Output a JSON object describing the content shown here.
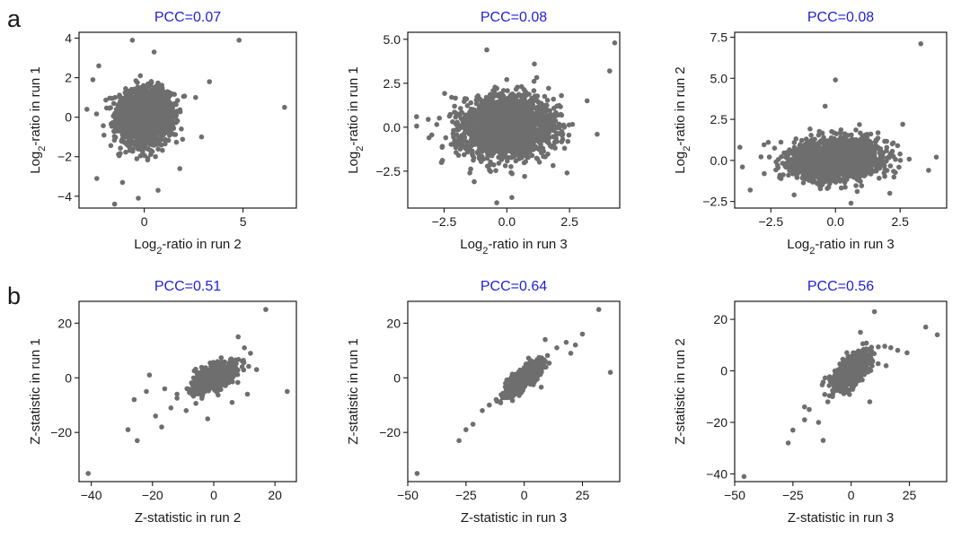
{
  "figure": {
    "panel_labels": [
      "a",
      "b"
    ],
    "title_color": "#1f1fd6",
    "point_color": "#6e6e6e"
  },
  "chart_data": [
    {
      "panel": "a",
      "type": "scatter",
      "title": "PCC=0.07",
      "xlabel": {
        "pre": "Log",
        "sub": "2",
        "post": "-ratio in run 2"
      },
      "ylabel": {
        "pre": "Log",
        "sub": "2",
        "post": "-ratio in run 1"
      },
      "xlim": [
        -3.3,
        7.7
      ],
      "ylim": [
        -4.6,
        4.3
      ],
      "xticks": [
        0,
        5
      ],
      "xtick_labels": [
        "0",
        "5"
      ],
      "yticks": [
        -4,
        -2,
        0,
        2,
        4
      ],
      "ytick_labels": [
        "−4",
        "−2",
        "0",
        "2",
        "4"
      ],
      "cloud": {
        "n": 2200,
        "mean": [
          0,
          0
        ],
        "sd": [
          0.65,
          0.65
        ],
        "corr": 0.07
      },
      "points": [
        [
          4.8,
          3.9
        ],
        [
          7.1,
          0.5
        ],
        [
          -2.3,
          2.6
        ],
        [
          -2.6,
          1.9
        ],
        [
          -2.9,
          0.4
        ],
        [
          -2.4,
          -3.1
        ],
        [
          -1.5,
          -4.4
        ],
        [
          -0.6,
          3.9
        ],
        [
          -0.3,
          -4.1
        ],
        [
          0.5,
          3.3
        ],
        [
          3.3,
          1.8
        ],
        [
          2.6,
          1.0
        ],
        [
          2.9,
          -1.0
        ],
        [
          1.8,
          -2.6
        ],
        [
          -1.1,
          -3.3
        ],
        [
          0.7,
          -3.7
        ]
      ]
    },
    {
      "panel": "a",
      "type": "scatter",
      "title": "PCC=0.08",
      "xlabel": {
        "pre": "Log",
        "sub": "2",
        "post": "-ratio in run 3"
      },
      "ylabel": {
        "pre": "Log",
        "sub": "2",
        "post": "-ratio in run 1"
      },
      "xlim": [
        -3.95,
        4.5
      ],
      "ylim": [
        -4.6,
        5.4
      ],
      "xticks": [
        -2.5,
        0,
        2.5
      ],
      "xtick_labels": [
        "−2.5",
        "0.0",
        "2.5"
      ],
      "yticks": [
        -2.5,
        0,
        2.5,
        5
      ],
      "ytick_labels": [
        "−2.5",
        "0.0",
        "2.5",
        "5.0"
      ],
      "cloud": {
        "n": 2200,
        "mean": [
          0,
          0
        ],
        "sd": [
          0.9,
          0.85
        ],
        "corr": 0.08
      },
      "points": [
        [
          4.3,
          4.8
        ],
        [
          4.1,
          3.2
        ],
        [
          3.2,
          1.5
        ],
        [
          -3.6,
          0.6
        ],
        [
          -3.1,
          -0.6
        ],
        [
          -2.6,
          -2.0
        ],
        [
          -0.8,
          4.4
        ],
        [
          -0.4,
          -4.3
        ],
        [
          0.2,
          -4.0
        ],
        [
          2.4,
          -2.6
        ],
        [
          3.6,
          -0.4
        ],
        [
          -2.2,
          1.7
        ],
        [
          1.1,
          3.6
        ],
        [
          -1.3,
          -3.1
        ]
      ]
    },
    {
      "panel": "a",
      "type": "scatter",
      "title": "PCC=0.08",
      "xlabel": {
        "pre": "Log",
        "sub": "2",
        "post": "-ratio in run 3"
      },
      "ylabel": {
        "pre": "Log",
        "sub": "2",
        "post": "-ratio in run 2"
      },
      "xlim": [
        -3.9,
        4.3
      ],
      "ylim": [
        -2.9,
        7.8
      ],
      "xticks": [
        -2.5,
        0,
        2.5
      ],
      "xtick_labels": [
        "−2.5",
        "0.0",
        "2.5"
      ],
      "yticks": [
        -2.5,
        0,
        2.5,
        5,
        7.5
      ],
      "ytick_labels": [
        "−2.5",
        "0.0",
        "2.5",
        "5.0",
        "7.5"
      ],
      "cloud": {
        "n": 2200,
        "mean": [
          0,
          0.05
        ],
        "sd": [
          0.85,
          0.6
        ],
        "corr": 0.08
      },
      "points": [
        [
          3.3,
          7.1
        ],
        [
          0.0,
          4.9
        ],
        [
          -3.7,
          0.8
        ],
        [
          -3.6,
          -0.4
        ],
        [
          -3.3,
          -1.8
        ],
        [
          3.9,
          0.2
        ],
        [
          3.6,
          -0.6
        ],
        [
          2.6,
          2.2
        ],
        [
          -0.4,
          3.3
        ],
        [
          0.6,
          -2.6
        ],
        [
          -1.6,
          -2.1
        ],
        [
          2.1,
          -2.0
        ],
        [
          -2.6,
          1.1
        ]
      ]
    },
    {
      "panel": "b",
      "type": "scatter",
      "title": "PCC=0.51",
      "xlabel": {
        "pre": "Z-statistic in run 2",
        "sub": "",
        "post": ""
      },
      "ylabel": {
        "pre": "Z-statistic in run 1",
        "sub": "",
        "post": ""
      },
      "xlim": [
        -44,
        27
      ],
      "ylim": [
        -38,
        28
      ],
      "xticks": [
        -40,
        -20,
        0,
        20
      ],
      "xtick_labels": [
        "−40",
        "−20",
        "0",
        "20"
      ],
      "yticks": [
        -20,
        0,
        20
      ],
      "ytick_labels": [
        "−20",
        "0",
        "20"
      ],
      "cloud": {
        "n": 900,
        "mean": [
          0,
          0
        ],
        "sd": [
          3.2,
          2.6
        ],
        "corr": 0.55
      },
      "points": [
        [
          -41,
          -35
        ],
        [
          17,
          25
        ],
        [
          24,
          -5
        ],
        [
          -25,
          -23
        ],
        [
          -28,
          -19
        ],
        [
          -26,
          -8
        ],
        [
          -22,
          -5
        ],
        [
          -21,
          1
        ],
        [
          -19,
          -14
        ],
        [
          -17,
          -18
        ],
        [
          -14,
          -11
        ],
        [
          -12,
          -6
        ],
        [
          -9,
          -12
        ],
        [
          8,
          15
        ],
        [
          10,
          11
        ],
        [
          12,
          9
        ],
        [
          14,
          3
        ],
        [
          11,
          -6
        ],
        [
          6,
          -9
        ],
        [
          -2,
          -15
        ],
        [
          -16,
          -4
        ]
      ]
    },
    {
      "panel": "b",
      "type": "scatter",
      "title": "PCC=0.64",
      "xlabel": {
        "pre": "Z-statistic in run 3",
        "sub": "",
        "post": ""
      },
      "ylabel": {
        "pre": "Z-statistic in run 1",
        "sub": "",
        "post": ""
      },
      "xlim": [
        -50,
        41
      ],
      "ylim": [
        -38,
        28
      ],
      "xticks": [
        -50,
        -25,
        0,
        25
      ],
      "xtick_labels": [
        "−50",
        "−25",
        "0",
        "25"
      ],
      "yticks": [
        -20,
        0,
        20
      ],
      "ytick_labels": [
        "−20",
        "0",
        "20"
      ],
      "cloud": {
        "n": 900,
        "mean": [
          0,
          0
        ],
        "sd": [
          3.8,
          3.0
        ],
        "corr": 0.8
      },
      "points": [
        [
          -46,
          -35
        ],
        [
          32,
          25
        ],
        [
          37,
          2
        ],
        [
          -28,
          -23
        ],
        [
          -25,
          -19
        ],
        [
          -22,
          -17
        ],
        [
          -18,
          -12
        ],
        [
          -15,
          -10
        ],
        [
          -12,
          -8
        ],
        [
          14,
          11
        ],
        [
          18,
          13
        ],
        [
          22,
          12
        ],
        [
          25,
          16
        ],
        [
          20,
          9
        ],
        [
          -8,
          -2
        ],
        [
          9,
          14
        ]
      ]
    },
    {
      "panel": "b",
      "type": "scatter",
      "title": "PCC=0.56",
      "xlabel": {
        "pre": "Z-statistic in run 3",
        "sub": "",
        "post": ""
      },
      "ylabel": {
        "pre": "Z-statistic in run 2",
        "sub": "",
        "post": ""
      },
      "xlim": [
        -50,
        41
      ],
      "ylim": [
        -43,
        27
      ],
      "xticks": [
        -50,
        -25,
        0,
        25
      ],
      "xtick_labels": [
        "−50",
        "−25",
        "0",
        "25"
      ],
      "yticks": [
        -40,
        -20,
        0,
        20
      ],
      "ytick_labels": [
        "−40",
        "−20",
        "0",
        "20"
      ],
      "cloud": {
        "n": 900,
        "mean": [
          0,
          0
        ],
        "sd": [
          3.8,
          3.3
        ],
        "corr": 0.65
      },
      "points": [
        [
          -46,
          -41
        ],
        [
          10,
          23
        ],
        [
          32,
          17
        ],
        [
          37,
          14
        ],
        [
          -27,
          -28
        ],
        [
          -25,
          -23
        ],
        [
          -20,
          -19
        ],
        [
          -18,
          -15
        ],
        [
          -14,
          -20
        ],
        [
          -12,
          -27
        ],
        [
          -10,
          -12
        ],
        [
          -8,
          -10
        ],
        [
          17,
          9
        ],
        [
          20,
          8
        ],
        [
          24,
          7
        ],
        [
          15,
          2
        ],
        [
          4,
          15
        ],
        [
          -20,
          -14
        ],
        [
          8,
          -12
        ]
      ]
    }
  ]
}
